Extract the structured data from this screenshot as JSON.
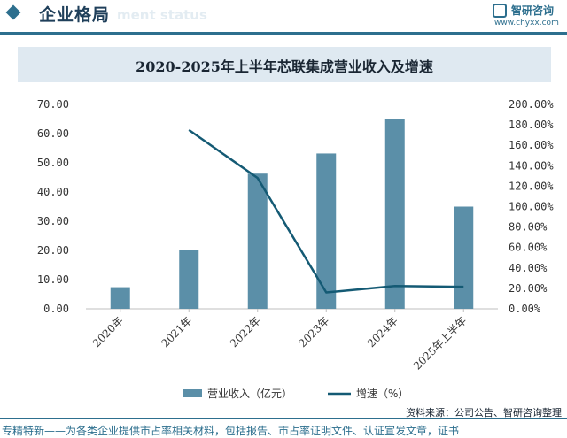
{
  "header": {
    "section_title": "企业格局",
    "section_title_en": "ment status",
    "brand_name": "智研咨询",
    "brand_url": "www.chyxx.com"
  },
  "source": "资料来源：公司公告、智研咨询整理",
  "footer": "专精特新——为各类企业提供市占率相关材料，包括报告、市占率证明文件、认证宣发文章，证书",
  "colors": {
    "bar": "#5b8fa8",
    "line": "#145a74",
    "accent": "#2d6f8e"
  },
  "chart_data": {
    "type": "bar",
    "title": "2020-2025年上半年芯联集成营业收入及增速",
    "categories": [
      "2020年",
      "2021年",
      "2022年",
      "2023年",
      "2024年",
      "2025年上半年"
    ],
    "series": [
      {
        "name": "营业收入（亿元）",
        "type": "bar",
        "axis": "left",
        "values": [
          7.4,
          20.2,
          46.3,
          53.2,
          65.1,
          35.0
        ]
      },
      {
        "name": "增速（%）",
        "type": "line",
        "axis": "right",
        "values": [
          null,
          175.0,
          128.0,
          16.0,
          22.3,
          21.5
        ]
      }
    ],
    "y_left": {
      "min": 0,
      "max": 70,
      "step": 10,
      "tick_labels": [
        "0.00",
        "10.00",
        "20.00",
        "30.00",
        "40.00",
        "50.00",
        "60.00",
        "70.00"
      ]
    },
    "y_right": {
      "min": 0,
      "max": 200,
      "step": 20,
      "tick_labels": [
        "0.00%",
        "20.00%",
        "40.00%",
        "60.00%",
        "80.00%",
        "100.00%",
        "120.00%",
        "140.00%",
        "160.00%",
        "180.00%",
        "200.00%"
      ]
    },
    "grid": false,
    "legend_position": "bottom"
  }
}
